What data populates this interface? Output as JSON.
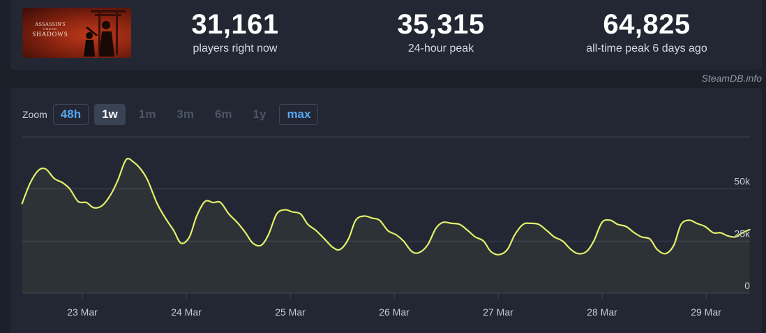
{
  "game": {
    "title_line1": "ASSASSIN'S",
    "title_line2": "CREED",
    "title_line3": "SHADOWS"
  },
  "stats": [
    {
      "value": "31,161",
      "label": "players right now"
    },
    {
      "value": "35,315",
      "label": "24-hour peak"
    },
    {
      "value": "64,825",
      "label": "all-time peak 6 days ago"
    }
  ],
  "credit": "SteamDB.info",
  "zoom": {
    "label": "Zoom",
    "buttons": [
      {
        "label": "48h",
        "state": "link"
      },
      {
        "label": "1w",
        "state": "active"
      },
      {
        "label": "1m",
        "state": "disabled"
      },
      {
        "label": "3m",
        "state": "disabled"
      },
      {
        "label": "6m",
        "state": "disabled"
      },
      {
        "label": "1y",
        "state": "disabled"
      },
      {
        "label": "max",
        "state": "link"
      }
    ]
  },
  "colors": {
    "line": "#e4ef6a",
    "grid": "#3c4453",
    "axis_text": "#c7ccd4",
    "link": "#57a6f0"
  },
  "chart_data": {
    "type": "line",
    "title": "",
    "xlabel": "",
    "ylabel": "",
    "grid": true,
    "ylim": [
      0,
      75000
    ],
    "x_ticks": [
      "23 Mar",
      "24 Mar",
      "25 Mar",
      "26 Mar",
      "27 Mar",
      "28 Mar",
      "29 Mar"
    ],
    "y_ticks": [
      {
        "value": 0,
        "label": "0"
      },
      {
        "value": 25000,
        "label": "25k"
      },
      {
        "value": 50000,
        "label": "50k"
      }
    ],
    "x_days_from_23_mar": [
      -0.58,
      -0.5,
      -0.42,
      -0.35,
      -0.27,
      -0.19,
      -0.12,
      -0.04,
      0.04,
      0.11,
      0.19,
      0.27,
      0.34,
      0.42,
      0.49,
      0.57,
      0.63,
      0.72,
      0.8,
      0.88,
      0.95,
      1.03,
      1.1,
      1.18,
      1.26,
      1.33,
      1.41,
      1.49,
      1.57,
      1.64,
      1.72,
      1.79,
      1.87,
      1.95,
      2.02,
      2.1,
      2.17,
      2.25,
      2.33,
      2.41,
      2.48,
      2.56,
      2.63,
      2.71,
      2.79,
      2.86,
      2.94,
      3.02,
      3.09,
      3.17,
      3.24,
      3.32,
      3.4,
      3.47,
      3.55,
      3.63,
      3.71,
      3.78,
      3.86,
      3.93,
      4.01,
      4.09,
      4.16,
      4.24,
      4.31,
      4.39,
      4.47,
      4.54,
      4.62,
      4.7,
      4.77,
      4.85,
      4.92,
      5.0,
      5.08,
      5.15,
      5.23,
      5.31,
      5.38,
      5.46,
      5.53,
      5.61,
      5.69,
      5.76,
      5.84,
      5.91,
      5.99,
      6.07,
      6.14,
      6.21,
      6.28,
      6.35,
      6.42
    ],
    "series": [
      {
        "values": [
          43000,
          53000,
          59000,
          59500,
          55000,
          53000,
          50000,
          44000,
          43500,
          41000,
          42000,
          47000,
          54000,
          64000,
          63000,
          59000,
          54000,
          43000,
          36000,
          30000,
          24000,
          27000,
          37000,
          44000,
          43500,
          43500,
          38000,
          34000,
          29000,
          24000,
          23000,
          28000,
          38000,
          40000,
          39000,
          38000,
          33000,
          30000,
          26000,
          22000,
          21000,
          26000,
          35000,
          37000,
          36000,
          35000,
          30000,
          28000,
          25000,
          20000,
          19500,
          23000,
          31000,
          34000,
          33500,
          33000,
          30000,
          27000,
          25000,
          20000,
          18500,
          21000,
          28000,
          33000,
          33500,
          33000,
          30000,
          27000,
          25000,
          21000,
          19000,
          20000,
          25000,
          34000,
          35000,
          33000,
          32000,
          29000,
          27000,
          26000,
          21000,
          19000,
          23000,
          33000,
          35000,
          33500,
          32000,
          29000,
          29000,
          27500,
          27000,
          29000,
          30500
        ]
      }
    ]
  }
}
